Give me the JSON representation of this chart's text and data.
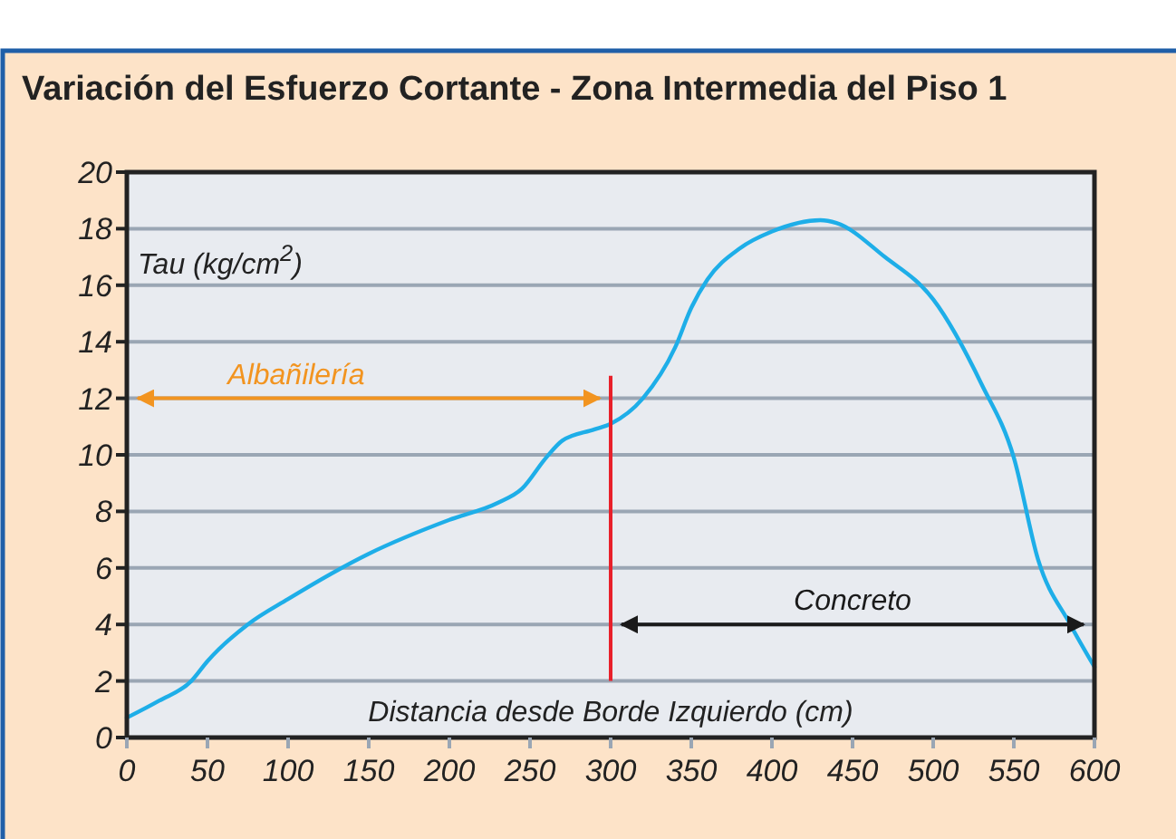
{
  "chart_data": {
    "type": "line",
    "title": "Variación del Esfuerzo Cortante - Zona Intermedia del Piso 1",
    "xlabel": "Distancia desde Borde Izquierdo (cm)",
    "ylabel": "Tau (kg/cm$^{2}$)",
    "x": [
      0,
      20,
      40,
      50,
      75,
      100,
      150,
      200,
      230,
      245,
      260,
      270,
      290,
      300,
      320,
      340,
      350,
      360,
      380,
      400,
      430,
      440,
      470,
      500,
      530,
      550,
      565,
      585,
      600
    ],
    "series": [
      {
        "color": "#1eaee8",
        "values": [
          0.7,
          1.3,
          2,
          2.7,
          4,
          4.9,
          6.5,
          7.7,
          8.3,
          8.8,
          9.9,
          10.5,
          10.9,
          11.1,
          12,
          13.8,
          15.2,
          16.2,
          17.3,
          17.9,
          18.3,
          18.2,
          17,
          15.5,
          12.5,
          9.9,
          6.3,
          4,
          2.5
        ]
      }
    ],
    "xlim": [
      0,
      600
    ],
    "xticks": [
      0,
      50,
      100,
      150,
      200,
      250,
      300,
      350,
      400,
      450,
      500,
      550,
      600
    ],
    "ylim": [
      0,
      20
    ],
    "yticks": [
      0,
      2,
      4,
      6,
      8,
      10,
      12,
      14,
      16,
      18,
      20
    ],
    "grid": "y",
    "marker": "none",
    "line_style": "solid",
    "ref_lines": [
      {
        "axis": "x",
        "value": 300,
        "color": "#e8202a"
      }
    ],
    "annotations": [
      "Albañilería",
      "Concreto"
    ]
  }
}
